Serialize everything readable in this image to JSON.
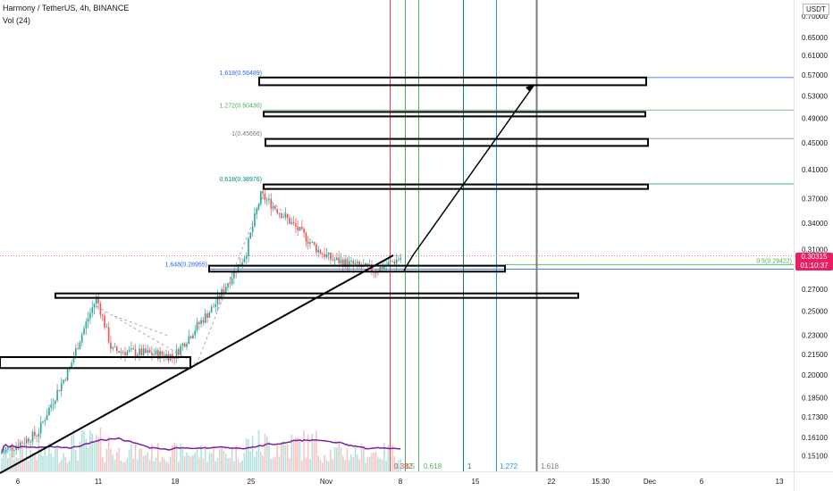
{
  "header": {
    "title": "Harmony / TetherUS, 4h, BINANCE",
    "volume_label": "Vol (24)",
    "currency": "USDT"
  },
  "price_tag": {
    "price": "0.30315",
    "countdown": "01:10:37"
  },
  "colors": {
    "up": "#26a69a",
    "down": "#ef5350",
    "ma": "#7b1fa2",
    "fib_blue": "#2962ff",
    "fib_green": "#4caf50",
    "fib_gray": "#787b86",
    "fib_teal": "#00897b",
    "fib_red": "#f23645",
    "current_price": "#e91e63"
  },
  "chart_data": {
    "type": "candlestick",
    "title": "Harmony / TetherUS, 4h, BINANCE",
    "y_axis": {
      "scale": "log",
      "range": [
        0.1475,
        0.7
      ],
      "tick_labels": [
        "0.70000",
        "0.65000",
        "0.61000",
        "0.57000",
        "0.53000",
        "0.49000",
        "0.45000",
        "0.41000",
        "0.37000",
        "0.34000",
        "0.31000",
        "0.27000",
        "0.25000",
        "0.23000",
        "0.21500",
        "0.20000",
        "0.18500",
        "0.17300",
        "0.16100",
        "0.15100"
      ]
    },
    "x_axis": {
      "tick_labels": [
        "6",
        "11",
        "18",
        "25",
        "Nov",
        "8",
        "15",
        "22",
        "15:30",
        "Dec",
        "6",
        "13"
      ]
    },
    "ohlc_path": [
      [
        "start",
        0.152
      ],
      [
        "6",
        0.163
      ],
      [
        "6+",
        0.205
      ],
      [
        "11",
        0.262
      ],
      [
        "11+",
        0.218
      ],
      [
        "18",
        0.214
      ],
      [
        "18+",
        0.255
      ],
      [
        "25",
        0.305
      ],
      [
        "25+",
        0.375
      ],
      [
        "Nov-",
        0.31
      ],
      [
        "Nov",
        0.3
      ],
      [
        "Nov+",
        0.288
      ],
      [
        "8",
        0.303
      ]
    ],
    "fib_extension_levels": [
      {
        "label": "1.618(0.56489)",
        "value": 0.56489,
        "color": "#2962ff"
      },
      {
        "label": "1.272(0.50430)",
        "value": 0.5043,
        "color": "#4caf50"
      },
      {
        "label": "1(0.45666)",
        "value": 0.45666,
        "color": "#787b86"
      },
      {
        "label": "0.618(0.38976)",
        "value": 0.38976,
        "color": "#00897b"
      },
      {
        "label": "1.648(0.28955)",
        "value": 0.28955,
        "color": "#2962ff"
      },
      {
        "label": "0.5(0.29422)",
        "value": 0.29422,
        "color": "#4caf50"
      }
    ],
    "fib_time_zones": [
      "0.382",
      "0.5",
      "0.618",
      "1",
      "1.272",
      "1.618"
    ],
    "zones": [
      {
        "low": 0.205,
        "high": 0.213
      },
      {
        "low": 0.263,
        "high": 0.266
      },
      {
        "low": 0.287,
        "high": 0.293
      },
      {
        "low": 0.383,
        "high": 0.389
      },
      {
        "low": 0.445,
        "high": 0.456
      },
      {
        "low": 0.494,
        "high": 0.501
      },
      {
        "low": 0.55,
        "high": 0.565
      }
    ],
    "volume_ma_period": 24
  }
}
